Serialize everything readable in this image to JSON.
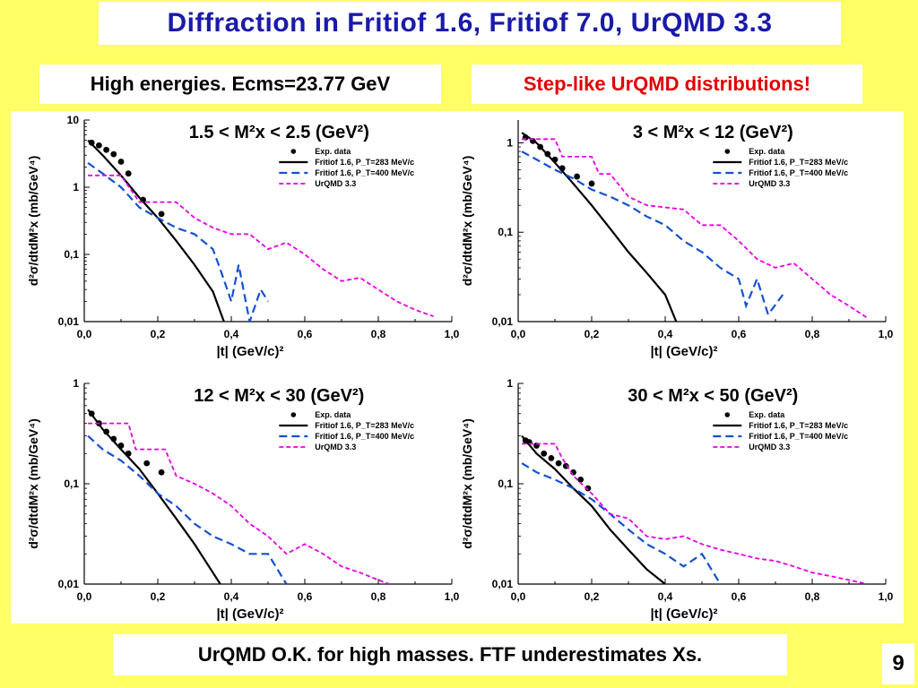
{
  "header": {
    "title": "Diffraction in Fritiof 1.6, Fritiof 7.0, UrQMD 3.3",
    "subtitle_left": "High energies. Ecms=23.77 GeV",
    "subtitle_right": "Step-like UrQMD distributions!"
  },
  "footer": {
    "conclusion": "UrQMD O.K. for high masses. FTF underestimates Xs.",
    "page_number": "9"
  },
  "colors": {
    "background": "#ffff66",
    "title": "#1a1aaa",
    "highlight": "#e00000",
    "exp": "#000000",
    "fritiof_283": "#000000",
    "fritiof_400": "#1450d2",
    "urqmd": "#e600e6"
  },
  "legend": {
    "exp": "Exp. data",
    "f283": "Fritiof 1.6, P_T=283 MeV/c",
    "f400": "Fritiof 1.6, P_T=400 MeV/c",
    "urqmd": "UrQMD 3.3"
  },
  "chart_data": [
    {
      "type": "line",
      "title": "1.5 < M²x < 2.5 (GeV²)",
      "title_parts": [
        "1.5",
        "2.5"
      ],
      "xlabel": "|t| (GeV/c)²",
      "ylabel": "d²σ/dtdM²x (mb/GeV⁴)",
      "xlim": [
        0,
        1.0
      ],
      "ylim": [
        0.01,
        10
      ],
      "yscale": "log",
      "xticks": [
        "0,0",
        "0,2",
        "0,4",
        "0,6",
        "0,8",
        "1,0"
      ],
      "yticks": [
        {
          "v": 10,
          "label": "10"
        },
        {
          "v": 1,
          "label": "1"
        },
        {
          "v": 0.1,
          "label": "0,1"
        },
        {
          "v": 0.01,
          "label": "0,01"
        }
      ],
      "series": [
        {
          "key": "exp",
          "style": "points",
          "data": [
            [
              0.02,
              4.6
            ],
            [
              0.04,
              4.2
            ],
            [
              0.06,
              3.6
            ],
            [
              0.08,
              3.1
            ],
            [
              0.1,
              2.4
            ],
            [
              0.12,
              1.6
            ],
            [
              0.16,
              0.65
            ],
            [
              0.21,
              0.4
            ]
          ]
        },
        {
          "key": "f283",
          "style": "solid",
          "data": [
            [
              0.01,
              5.0
            ],
            [
              0.05,
              3.0
            ],
            [
              0.1,
              1.5
            ],
            [
              0.15,
              0.7
            ],
            [
              0.2,
              0.35
            ],
            [
              0.25,
              0.16
            ],
            [
              0.3,
              0.07
            ],
            [
              0.35,
              0.028
            ],
            [
              0.38,
              0.01
            ]
          ]
        },
        {
          "key": "f400",
          "style": "dashed",
          "data": [
            [
              0.01,
              2.3
            ],
            [
              0.05,
              1.6
            ],
            [
              0.1,
              1.0
            ],
            [
              0.15,
              0.5
            ],
            [
              0.2,
              0.35
            ],
            [
              0.25,
              0.25
            ],
            [
              0.3,
              0.2
            ],
            [
              0.35,
              0.12
            ],
            [
              0.37,
              0.06
            ],
            [
              0.4,
              0.02
            ],
            [
              0.42,
              0.07
            ],
            [
              0.45,
              0.01
            ],
            [
              0.48,
              0.03
            ],
            [
              0.5,
              0.02
            ]
          ]
        },
        {
          "key": "urqmd",
          "style": "dashed",
          "data": [
            [
              0.01,
              1.5
            ],
            [
              0.1,
              1.5
            ],
            [
              0.15,
              0.6
            ],
            [
              0.25,
              0.6
            ],
            [
              0.3,
              0.35
            ],
            [
              0.35,
              0.25
            ],
            [
              0.4,
              0.2
            ],
            [
              0.45,
              0.2
            ],
            [
              0.5,
              0.12
            ],
            [
              0.55,
              0.15
            ],
            [
              0.6,
              0.1
            ],
            [
              0.65,
              0.06
            ],
            [
              0.7,
              0.04
            ],
            [
              0.75,
              0.045
            ],
            [
              0.8,
              0.03
            ],
            [
              0.85,
              0.02
            ],
            [
              0.9,
              0.015
            ],
            [
              0.95,
              0.012
            ]
          ]
        }
      ]
    },
    {
      "type": "line",
      "title": "3 < M²x < 12 (GeV²)",
      "title_parts": [
        "3",
        "12"
      ],
      "xlabel": "|t| (GeV/c)²",
      "ylabel": "d²σ/dtdM²x (mb/GeV⁴)",
      "xlim": [
        0,
        1.0
      ],
      "ylim": [
        0.01,
        1.8
      ],
      "yscale": "log",
      "xticks": [
        "0,0",
        "0,2",
        "0,4",
        "0,6",
        "0,8",
        "1,0"
      ],
      "yticks": [
        {
          "v": 1,
          "label": "1"
        },
        {
          "v": 0.1,
          "label": "0,1"
        },
        {
          "v": 0.01,
          "label": "0,01"
        }
      ],
      "series": [
        {
          "key": "exp",
          "style": "points",
          "data": [
            [
              0.02,
              1.15
            ],
            [
              0.04,
              1.05
            ],
            [
              0.06,
              0.9
            ],
            [
              0.08,
              0.75
            ],
            [
              0.1,
              0.65
            ],
            [
              0.12,
              0.52
            ],
            [
              0.16,
              0.42
            ],
            [
              0.2,
              0.35
            ]
          ]
        },
        {
          "key": "f283",
          "style": "solid",
          "data": [
            [
              0.01,
              1.3
            ],
            [
              0.05,
              1.0
            ],
            [
              0.1,
              0.6
            ],
            [
              0.15,
              0.35
            ],
            [
              0.2,
              0.2
            ],
            [
              0.25,
              0.11
            ],
            [
              0.3,
              0.06
            ],
            [
              0.35,
              0.035
            ],
            [
              0.4,
              0.02
            ],
            [
              0.43,
              0.01
            ]
          ]
        },
        {
          "key": "f400",
          "style": "dashed",
          "data": [
            [
              0.01,
              0.8
            ],
            [
              0.05,
              0.65
            ],
            [
              0.1,
              0.5
            ],
            [
              0.15,
              0.4
            ],
            [
              0.2,
              0.3
            ],
            [
              0.25,
              0.25
            ],
            [
              0.3,
              0.2
            ],
            [
              0.35,
              0.15
            ],
            [
              0.4,
              0.12
            ],
            [
              0.45,
              0.08
            ],
            [
              0.5,
              0.06
            ],
            [
              0.55,
              0.04
            ],
            [
              0.6,
              0.03
            ],
            [
              0.62,
              0.015
            ],
            [
              0.65,
              0.03
            ],
            [
              0.68,
              0.012
            ],
            [
              0.72,
              0.02
            ]
          ]
        },
        {
          "key": "urqmd",
          "style": "dashed",
          "data": [
            [
              0.01,
              1.1
            ],
            [
              0.1,
              1.1
            ],
            [
              0.12,
              0.7
            ],
            [
              0.2,
              0.7
            ],
            [
              0.22,
              0.45
            ],
            [
              0.25,
              0.45
            ],
            [
              0.3,
              0.25
            ],
            [
              0.35,
              0.2
            ],
            [
              0.45,
              0.18
            ],
            [
              0.5,
              0.12
            ],
            [
              0.55,
              0.12
            ],
            [
              0.6,
              0.08
            ],
            [
              0.65,
              0.05
            ],
            [
              0.7,
              0.04
            ],
            [
              0.75,
              0.045
            ],
            [
              0.8,
              0.03
            ],
            [
              0.85,
              0.02
            ],
            [
              0.9,
              0.015
            ],
            [
              0.95,
              0.011
            ]
          ]
        }
      ]
    },
    {
      "type": "line",
      "title": "12 < M²x < 30 (GeV²)",
      "title_parts": [
        "12",
        "30"
      ],
      "xlabel": "|t| (GeV/c)²",
      "ylabel": "d²σ/dtdM²x (mb/GeV⁴)",
      "xlim": [
        0,
        1.0
      ],
      "ylim": [
        0.01,
        1
      ],
      "yscale": "log",
      "xticks": [
        "0,0",
        "0,2",
        "0,4",
        "0,6",
        "0,8",
        "1,0"
      ],
      "yticks": [
        {
          "v": 1,
          "label": "1"
        },
        {
          "v": 0.1,
          "label": "0,1"
        },
        {
          "v": 0.01,
          "label": "0,01"
        }
      ],
      "series": [
        {
          "key": "exp",
          "style": "points",
          "data": [
            [
              0.02,
              0.5
            ],
            [
              0.04,
              0.4
            ],
            [
              0.06,
              0.33
            ],
            [
              0.08,
              0.28
            ],
            [
              0.1,
              0.24
            ],
            [
              0.12,
              0.2
            ],
            [
              0.17,
              0.16
            ],
            [
              0.21,
              0.13
            ]
          ]
        },
        {
          "key": "f283",
          "style": "solid",
          "data": [
            [
              0.01,
              0.55
            ],
            [
              0.05,
              0.35
            ],
            [
              0.1,
              0.22
            ],
            [
              0.15,
              0.14
            ],
            [
              0.2,
              0.08
            ],
            [
              0.25,
              0.045
            ],
            [
              0.3,
              0.025
            ],
            [
              0.35,
              0.013
            ],
            [
              0.37,
              0.01
            ]
          ]
        },
        {
          "key": "f400",
          "style": "dashed",
          "data": [
            [
              0.01,
              0.3
            ],
            [
              0.05,
              0.22
            ],
            [
              0.1,
              0.17
            ],
            [
              0.15,
              0.12
            ],
            [
              0.2,
              0.08
            ],
            [
              0.25,
              0.06
            ],
            [
              0.3,
              0.04
            ],
            [
              0.35,
              0.03
            ],
            [
              0.4,
              0.025
            ],
            [
              0.45,
              0.02
            ],
            [
              0.5,
              0.02
            ],
            [
              0.55,
              0.01
            ]
          ]
        },
        {
          "key": "urqmd",
          "style": "dashed",
          "data": [
            [
              0.01,
              0.4
            ],
            [
              0.12,
              0.4
            ],
            [
              0.14,
              0.22
            ],
            [
              0.22,
              0.22
            ],
            [
              0.25,
              0.12
            ],
            [
              0.3,
              0.1
            ],
            [
              0.35,
              0.08
            ],
            [
              0.4,
              0.06
            ],
            [
              0.45,
              0.04
            ],
            [
              0.5,
              0.03
            ],
            [
              0.55,
              0.02
            ],
            [
              0.6,
              0.025
            ],
            [
              0.65,
              0.02
            ],
            [
              0.7,
              0.015
            ],
            [
              0.75,
              0.013
            ],
            [
              0.8,
              0.011
            ],
            [
              0.83,
              0.01
            ]
          ]
        }
      ]
    },
    {
      "type": "line",
      "title": "30 < M²x < 50 (GeV²)",
      "title_parts": [
        "30",
        "50"
      ],
      "xlabel": "|t| (GeV/c)²",
      "ylabel": "d²σ/dtdM²x (mb/GeV⁴)",
      "xlim": [
        0,
        1.0
      ],
      "ylim": [
        0.01,
        1
      ],
      "yscale": "log",
      "xticks": [
        "0,0",
        "0,2",
        "0,4",
        "0,6",
        "0,8",
        "1,0"
      ],
      "yticks": [
        {
          "v": 1,
          "label": "1"
        },
        {
          "v": 0.1,
          "label": "0,1"
        },
        {
          "v": 0.01,
          "label": "0,01"
        }
      ],
      "series": [
        {
          "key": "exp",
          "style": "points",
          "data": [
            [
              0.02,
              0.27
            ],
            [
              0.03,
              0.26
            ],
            [
              0.05,
              0.24
            ],
            [
              0.07,
              0.2
            ],
            [
              0.09,
              0.18
            ],
            [
              0.11,
              0.16
            ],
            [
              0.13,
              0.15
            ],
            [
              0.15,
              0.13
            ],
            [
              0.17,
              0.11
            ],
            [
              0.19,
              0.09
            ]
          ]
        },
        {
          "key": "f283",
          "style": "solid",
          "data": [
            [
              0.01,
              0.3
            ],
            [
              0.05,
              0.2
            ],
            [
              0.1,
              0.14
            ],
            [
              0.15,
              0.09
            ],
            [
              0.2,
              0.06
            ],
            [
              0.25,
              0.035
            ],
            [
              0.3,
              0.022
            ],
            [
              0.35,
              0.014
            ],
            [
              0.4,
              0.01
            ]
          ]
        },
        {
          "key": "f400",
          "style": "dashed",
          "data": [
            [
              0.01,
              0.16
            ],
            [
              0.05,
              0.13
            ],
            [
              0.1,
              0.11
            ],
            [
              0.15,
              0.09
            ],
            [
              0.2,
              0.07
            ],
            [
              0.25,
              0.05
            ],
            [
              0.3,
              0.035
            ],
            [
              0.35,
              0.025
            ],
            [
              0.4,
              0.02
            ],
            [
              0.45,
              0.015
            ],
            [
              0.5,
              0.02
            ],
            [
              0.55,
              0.01
            ]
          ]
        },
        {
          "key": "urqmd",
          "style": "dashed",
          "data": [
            [
              0.01,
              0.25
            ],
            [
              0.1,
              0.25
            ],
            [
              0.12,
              0.18
            ],
            [
              0.15,
              0.12
            ],
            [
              0.2,
              0.08
            ],
            [
              0.25,
              0.05
            ],
            [
              0.3,
              0.045
            ],
            [
              0.35,
              0.03
            ],
            [
              0.4,
              0.028
            ],
            [
              0.45,
              0.03
            ],
            [
              0.5,
              0.025
            ],
            [
              0.55,
              0.022
            ],
            [
              0.6,
              0.02
            ],
            [
              0.65,
              0.018
            ],
            [
              0.7,
              0.017
            ],
            [
              0.75,
              0.015
            ],
            [
              0.8,
              0.013
            ],
            [
              0.85,
              0.012
            ],
            [
              0.9,
              0.011
            ],
            [
              0.95,
              0.01
            ]
          ]
        }
      ]
    }
  ]
}
